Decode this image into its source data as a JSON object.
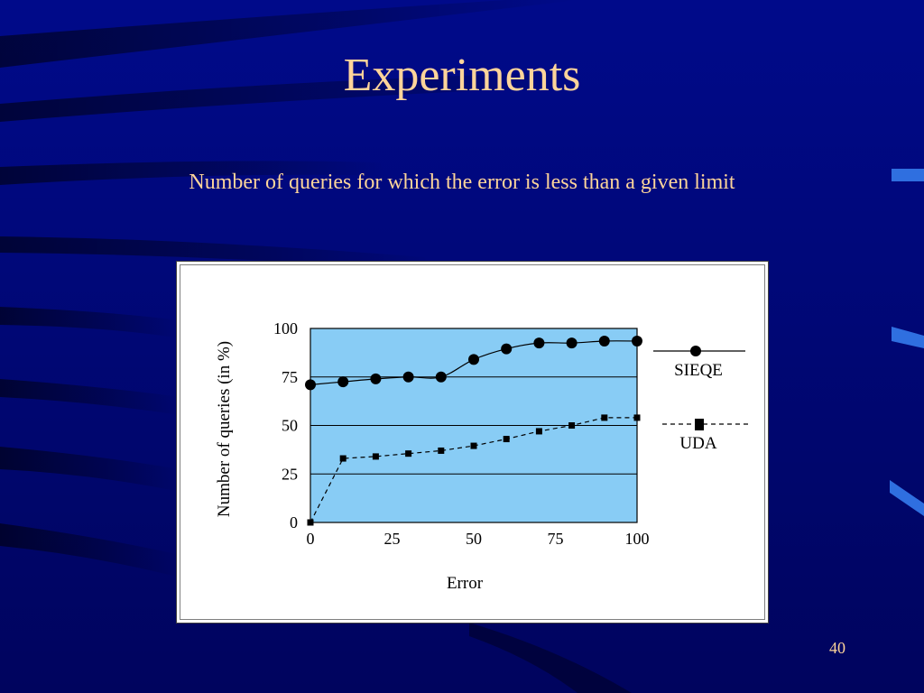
{
  "slide": {
    "title": "Experiments",
    "subtitle": "Number of queries for which the error is less than a given limit",
    "page_number": "40"
  },
  "colors": {
    "background": "#00087a",
    "title_text": "#fdd49a",
    "plot_area": "#88ccf5"
  },
  "chart_data": {
    "type": "line",
    "title": "",
    "xlabel": "Error",
    "ylabel": "Number of queries (in %)",
    "xlim": [
      0,
      100
    ],
    "ylim": [
      0,
      100
    ],
    "xticks": [
      "0",
      "25",
      "50",
      "75",
      "100"
    ],
    "yticks": [
      "100",
      "75",
      "50",
      "25",
      "0"
    ],
    "grid": true,
    "legend_position": "right",
    "series": [
      {
        "name": "SIEQE",
        "marker": "circle",
        "line_style": "solid",
        "x": [
          0,
          10,
          20,
          30,
          40,
          50,
          60,
          70,
          80,
          90,
          100
        ],
        "y": [
          71,
          72.5,
          74,
          75,
          75,
          84,
          89.5,
          92.5,
          92.5,
          93.5,
          93.5
        ]
      },
      {
        "name": "UDA",
        "marker": "square",
        "line_style": "dashed",
        "x": [
          0,
          10,
          20,
          30,
          40,
          50,
          60,
          70,
          80,
          90,
          100
        ],
        "y": [
          0,
          33,
          34,
          35.5,
          37,
          39.5,
          43,
          47,
          50,
          54,
          54
        ]
      }
    ]
  }
}
